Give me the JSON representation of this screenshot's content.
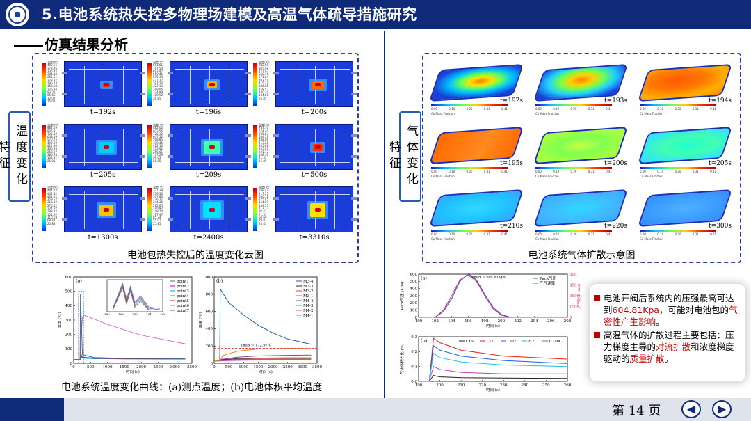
{
  "header": {
    "title": "5.电池系统热失控多物理场建模及高温气体疏导措施研究"
  },
  "section_title": "仿真结果分析",
  "temp_panel": {
    "side_label": "温度变化特征",
    "colorbar_title": "温度(℃)",
    "caption": "电池包热失控后的温度变化云图",
    "cells": [
      {
        "time": "t=192s",
        "ticks": [
          "482.66",
          "373.46",
          "336.82",
          "304.18",
          "261.51",
          "228.87",
          "190.23",
          "160.58",
          "126.94",
          "93.30",
          "65.66",
          "32.02",
          "25.00"
        ]
      },
      {
        "time": "t=196s",
        "ticks": [
          "841.61",
          "767.54",
          "693.47",
          "619.41",
          "545.34",
          "471.27",
          "397.20",
          "323.13",
          "249.06",
          "174.99",
          "100.92",
          "26.85"
        ]
      },
      {
        "time": "t=200s",
        "ticks": [
          "882.55",
          "805.98",
          "727.92",
          "650.16",
          "571.84",
          "493.51",
          "415.18",
          "336.85",
          "258.53",
          "180.20",
          "104.68",
          "25.85"
        ]
      },
      {
        "time": "t=205s",
        "ticks": [
          "884.69",
          "805.81",
          "726.10",
          "648.49",
          "570.75",
          "492.59",
          "414.80",
          "336.95",
          "258.97",
          "180.74",
          "102.91",
          "25.85"
        ]
      },
      {
        "time": "t=209s",
        "ticks": [
          "882.00",
          "803.56",
          "725.32",
          "647.12",
          "568.85",
          "490.46",
          "412.13",
          "333.92",
          "255.61",
          "177.29",
          "99.03",
          "25.85"
        ]
      },
      {
        "time": "t=500s",
        "ticks": [
          "733.16",
          "674.40",
          "605.63",
          "544.59",
          "488.86",
          "413.26",
          "355.62",
          "285.07",
          "221.12",
          "158.56",
          "91.93",
          "25.85"
        ]
      },
      {
        "time": "t=1300s",
        "ticks": [
          "484.42",
          "442.82",
          "401.22",
          "359.62",
          "318.02",
          "276.42",
          "234.82",
          "193.22",
          "151.62",
          "110.04",
          "68.44",
          "25.85"
        ]
      },
      {
        "time": "t=2400s",
        "ticks": [
          "371.29",
          "339.56",
          "307.83",
          "276.11",
          "244.38",
          "212.65",
          "180.92",
          "149.20",
          "117.47",
          "85.74",
          "54.01",
          "25.85"
        ]
      },
      {
        "time": "t=3310s",
        "ticks": [
          "238.43",
          "217.57",
          "196.71",
          "175.85",
          "154.99",
          "134.13",
          "113.27",
          "92.41",
          "71.55",
          "50.69",
          "29.83",
          "25.85"
        ]
      }
    ]
  },
  "gas_panel": {
    "side_label": "气体变化特征",
    "caption": "电池系统气体扩散示意图",
    "fraction_label": "Co Mass Fraction",
    "bar_ticks": [
      "0.00",
      "0.10",
      "0.20",
      "0.31",
      "0.41"
    ],
    "cells": [
      {
        "time": "t=192s"
      },
      {
        "time": "t=193s"
      },
      {
        "time": "t=194s"
      },
      {
        "time": "t=195s"
      },
      {
        "time": "t=200s"
      },
      {
        "time": "t=205s"
      },
      {
        "time": "t=210s"
      },
      {
        "time": "t=220s"
      },
      {
        "time": "t=300s"
      }
    ]
  },
  "line_caption": "电池系统温度变化曲线：(a)测点温度；(b)电池体积平均温度",
  "info": {
    "item1_pre": "电池开阀后系统内的压强最高可达到",
    "item1_value": "604.81Kpa",
    "item1_mid": "，可能对电池包的",
    "item1_red": "气密性产生影响",
    "item1_end": "。",
    "item2_pre": "高温气体的扩散过程主要包括：压力梯度主导的",
    "item2_red1": "对流扩散",
    "item2_mid": "和浓度梯度驱动的",
    "item2_red2": "质量扩散",
    "item2_end": "。"
  },
  "footer": {
    "page_label": "第 14 页",
    "prev_icon": "◀",
    "next_icon": "▶"
  },
  "chart_data": [
    {
      "type": "line",
      "panel": "(a)",
      "xlabel": "时间 (s)",
      "ylabel": "温度 (℃)",
      "xlim": [
        0,
        3500
      ],
      "ylim": [
        0,
        600
      ],
      "xticks": [
        "0",
        "500",
        "1000",
        "1500",
        "2000",
        "2500",
        "3000",
        "3500"
      ],
      "yticks": [
        "0",
        "100",
        "200",
        "300",
        "400",
        "500",
        "600"
      ],
      "inset_xticks": [
        "192",
        "196",
        "200",
        "204",
        "208"
      ],
      "series": [
        {
          "name": "point1",
          "color": "#3f7f3f",
          "x": [
            0,
            190,
            200,
            260,
            600,
            1500,
            3300
          ],
          "y": [
            25,
            25,
            60,
            40,
            35,
            32,
            30
          ]
        },
        {
          "name": "point2",
          "color": "#b000b0",
          "x": [
            0,
            190,
            200,
            260,
            600,
            1500,
            3300
          ],
          "y": [
            25,
            25,
            55,
            38,
            33,
            31,
            30
          ]
        },
        {
          "name": "point3",
          "color": "#00a0ff",
          "x": [
            0,
            190,
            200,
            260,
            600,
            1500,
            3300
          ],
          "y": [
            25,
            25,
            50,
            36,
            32,
            30,
            29
          ]
        },
        {
          "name": "point4",
          "color": "#8a7a2a",
          "x": [
            0,
            190,
            200,
            260,
            600,
            1500,
            3300
          ],
          "y": [
            25,
            25,
            70,
            42,
            36,
            33,
            30
          ]
        },
        {
          "name": "point5",
          "color": "#aa2a2a",
          "x": [
            0,
            190,
            200,
            260,
            600,
            1500,
            3300
          ],
          "y": [
            25,
            25,
            65,
            41,
            35,
            32,
            30
          ]
        },
        {
          "name": "point6",
          "color": "#d070d0",
          "x": [
            0,
            190,
            200,
            260,
            300,
            1000,
            2000,
            3300
          ],
          "y": [
            25,
            25,
            120,
            320,
            335,
            270,
            195,
            135
          ]
        },
        {
          "name": "point7",
          "color": "#3a6aa0",
          "x": [
            0,
            190,
            200,
            260,
            600,
            1500,
            3300
          ],
          "y": [
            25,
            25,
            480,
            60,
            40,
            34,
            31
          ]
        }
      ]
    },
    {
      "type": "line",
      "panel": "(b)",
      "xlabel": "时间 (s)",
      "ylabel": "温度 (℃)",
      "xlim": [
        0,
        3500
      ],
      "ylim": [
        0,
        1000
      ],
      "xticks": [
        "0",
        "500",
        "1000",
        "1500",
        "2000",
        "2500",
        "3000",
        "3500"
      ],
      "yticks": [
        "0",
        "200",
        "400",
        "600",
        "800",
        "1000"
      ],
      "annotation": "Tmax = 172.97℃",
      "annotation_y": 172.97,
      "series": [
        {
          "name": "M3-4",
          "color": "#1f5fa0",
          "x": [
            0,
            190,
            205,
            500,
            1000,
            1500,
            2000,
            2500,
            3300
          ],
          "y": [
            25,
            25,
            860,
            700,
            560,
            440,
            350,
            280,
            220
          ]
        },
        {
          "name": "M3-3",
          "color": "#2a2a2a",
          "x": [
            0,
            190,
            250,
            800,
            1500,
            2500,
            3300
          ],
          "y": [
            25,
            25,
            40,
            55,
            60,
            62,
            62
          ]
        },
        {
          "name": "M3-2",
          "color": "#d04040",
          "x": [
            0,
            190,
            250,
            800,
            1500,
            2500,
            3300
          ],
          "y": [
            25,
            25,
            35,
            45,
            50,
            52,
            52
          ]
        },
        {
          "name": "M3-1",
          "color": "#40a040",
          "x": [
            0,
            190,
            250,
            800,
            1500,
            2500,
            3300
          ],
          "y": [
            25,
            25,
            32,
            40,
            44,
            46,
            46
          ]
        },
        {
          "name": "M4-4",
          "color": "#9040a0",
          "x": [
            0,
            190,
            250,
            800,
            1500,
            2500,
            3300
          ],
          "y": [
            25,
            25,
            45,
            70,
            85,
            92,
            95
          ]
        },
        {
          "name": "M4-3",
          "color": "#40a0c0",
          "x": [
            0,
            190,
            250,
            800,
            1500,
            2500,
            3300
          ],
          "y": [
            25,
            25,
            30,
            36,
            40,
            42,
            42
          ]
        },
        {
          "name": "M4-2",
          "color": "#c040c0",
          "x": [
            0,
            190,
            250,
            800,
            1500,
            2500,
            3300
          ],
          "y": [
            25,
            25,
            28,
            33,
            36,
            38,
            38
          ]
        },
        {
          "name": "M4-1",
          "color": "#f08000",
          "x": [
            0,
            190,
            300,
            800,
            1500,
            2500,
            3300
          ],
          "y": [
            25,
            25,
            90,
            140,
            165,
            172,
            170
          ]
        }
      ]
    },
    {
      "type": "line",
      "panel": "(a)",
      "xlabel": "时间 (s)",
      "ylabel": "Pack气压 (Kpa)",
      "ylabel_right": "产气速率 (m/s)",
      "xlim": [
        190,
        208
      ],
      "ylim": [
        0,
        600
      ],
      "xticks": [
        "190",
        "192",
        "194",
        "196",
        "198",
        "200",
        "202",
        "204",
        "206",
        "208"
      ],
      "yticks": [
        "0",
        "100",
        "200",
        "300",
        "400",
        "500",
        "600"
      ],
      "yticks_right": [
        "0",
        "150",
        "300",
        "450",
        "600"
      ],
      "annotation": "Pmax = 604.81Kpa",
      "series": [
        {
          "name": "Pack气压",
          "color": "#2a60d8",
          "x": [
            190,
            192,
            193,
            194,
            195,
            196,
            197,
            198,
            199,
            200,
            201,
            202,
            208
          ],
          "y": [
            0,
            0,
            80,
            260,
            500,
            604.81,
            520,
            320,
            140,
            40,
            5,
            0,
            0
          ]
        },
        {
          "name": "产气速率",
          "color": "#e0306a",
          "x": [
            190,
            192,
            193,
            194,
            195,
            196,
            197,
            198,
            199,
            200,
            201,
            202,
            208
          ],
          "y": [
            0,
            0,
            100,
            300,
            520,
            590,
            500,
            300,
            120,
            30,
            0,
            0,
            0
          ]
        }
      ]
    },
    {
      "type": "line",
      "panel": "(b)",
      "xlabel": "时间 (s)",
      "ylabel": "气体体积占比 (%)",
      "xlim": [
        190,
        260
      ],
      "ylim": [
        0,
        0.3
      ],
      "xticks": [
        "190",
        "200",
        "210",
        "220",
        "230",
        "240",
        "250",
        "260"
      ],
      "yticks": [
        "0.0",
        "0.1",
        "0.2",
        "0.3"
      ],
      "series": [
        {
          "name": "CH4",
          "color": "#202020",
          "x": [
            190,
            195,
            197,
            200,
            210,
            230,
            260
          ],
          "y": [
            0,
            0,
            0.04,
            0.03,
            0.025,
            0.022,
            0.02
          ]
        },
        {
          "name": "CO",
          "color": "#e02020",
          "x": [
            190,
            195,
            197,
            200,
            210,
            230,
            260
          ],
          "y": [
            0,
            0,
            0.29,
            0.26,
            0.21,
            0.17,
            0.15
          ]
        },
        {
          "name": "CO2",
          "color": "#2060e0",
          "x": [
            190,
            195,
            197,
            200,
            210,
            230,
            260
          ],
          "y": [
            0,
            0,
            0.24,
            0.21,
            0.17,
            0.14,
            0.12
          ]
        },
        {
          "name": "H2",
          "color": "#20c0e0",
          "x": [
            190,
            195,
            197,
            200,
            210,
            230,
            260
          ],
          "y": [
            0,
            0,
            0.19,
            0.16,
            0.13,
            0.11,
            0.1
          ]
        },
        {
          "name": "C2H4",
          "color": "#c040c0",
          "x": [
            190,
            195,
            197,
            200,
            210,
            230,
            260
          ],
          "y": [
            0,
            0,
            0.1,
            0.08,
            0.06,
            0.05,
            0.05
          ]
        }
      ]
    }
  ]
}
